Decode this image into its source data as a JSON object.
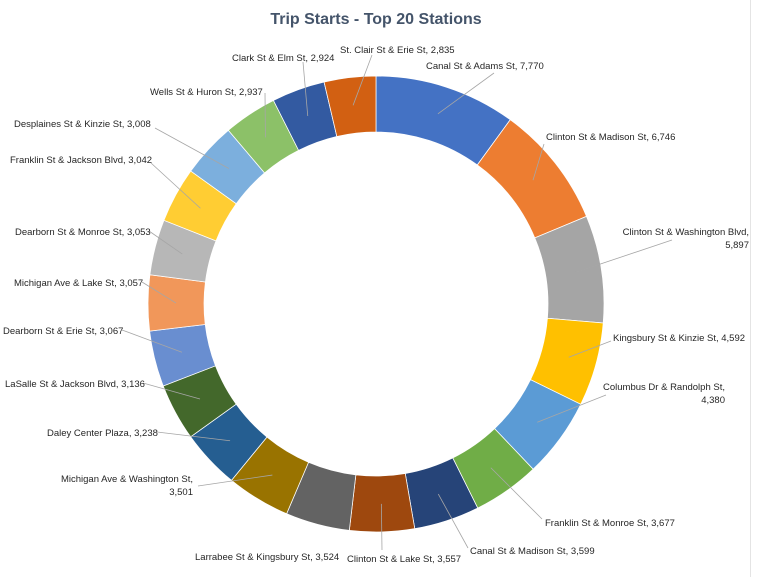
{
  "chart_data": {
    "type": "pie",
    "variant": "doughnut",
    "title": "Trip Starts - Top 20 Stations",
    "legend": "none",
    "series": [
      {
        "name": "Canal St & Adams St",
        "value_label": "7,770",
        "value": 7770,
        "color": "#4472c4"
      },
      {
        "name": "Clinton St & Madison St",
        "value_label": "6,746",
        "value": 6746,
        "color": "#ed7d31"
      },
      {
        "name": "Clinton St & Washington Blvd",
        "value_label": "5,897",
        "value": 5897,
        "color": "#a5a5a5"
      },
      {
        "name": "Kingsbury St & Kinzie St",
        "value_label": "4,592",
        "value": 4592,
        "color": "#ffc000"
      },
      {
        "name": "Columbus Dr & Randolph St",
        "value_label": "4,380",
        "value": 4380,
        "color": "#5b9bd5"
      },
      {
        "name": "Franklin St & Monroe St",
        "value_label": "3,677",
        "value": 3677,
        "color": "#70ad47"
      },
      {
        "name": "Canal St & Madison St",
        "value_label": "3,599",
        "value": 3599,
        "color": "#264478"
      },
      {
        "name": "Clinton St & Lake St",
        "value_label": "3,557",
        "value": 3557,
        "color": "#9e480e"
      },
      {
        "name": "Larrabee St & Kingsbury St",
        "value_label": "3,524",
        "value": 3524,
        "color": "#636363"
      },
      {
        "name": "Michigan Ave & Washington St",
        "value_label": "3,501",
        "value": 3501,
        "color": "#997300"
      },
      {
        "name": "Daley Center Plaza",
        "value_label": "3,238",
        "value": 3238,
        "color": "#255e91"
      },
      {
        "name": "LaSalle St & Jackson Blvd",
        "value_label": "3,136",
        "value": 3136,
        "color": "#43682b"
      },
      {
        "name": "Dearborn St & Erie St",
        "value_label": "3,067",
        "value": 3067,
        "color": "#698ed0"
      },
      {
        "name": "Michigan Ave & Lake St",
        "value_label": "3,057",
        "value": 3057,
        "color": "#f1975a"
      },
      {
        "name": "Dearborn St & Monroe St",
        "value_label": "3,053",
        "value": 3053,
        "color": "#b7b7b7"
      },
      {
        "name": "Franklin St & Jackson Blvd",
        "value_label": "3,042",
        "value": 3042,
        "color": "#ffcd33"
      },
      {
        "name": "Desplaines St & Kinzie St",
        "value_label": "3,008",
        "value": 3008,
        "color": "#7cafdd"
      },
      {
        "name": "Wells St & Huron St",
        "value_label": "2,937",
        "value": 2937,
        "color": "#8cc168"
      },
      {
        "name": "Clark St & Elm St",
        "value_label": "2,924",
        "value": 2924,
        "color": "#335aa1"
      },
      {
        "name": "St. Clair St & Erie St",
        "value_label": "2,835",
        "value": 2835,
        "color": "#d26012"
      }
    ]
  }
}
